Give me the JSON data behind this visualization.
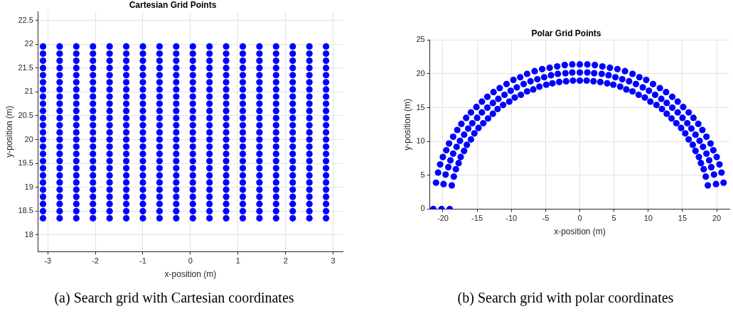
{
  "chart_data": [
    {
      "type": "scatter",
      "title": "Cartesian Grid Points",
      "xlabel": "x-position (m)",
      "ylabel": "y-position (m)",
      "annotations": [
        "(a) Search grid with Cartesian coordinates"
      ],
      "marker": "circle",
      "grid": true,
      "legend": false,
      "xlim": [
        -3.2,
        3.2
      ],
      "xticks": [
        -3,
        -2,
        -1,
        0,
        1,
        2,
        3
      ],
      "ylim": [
        17.65,
        22.68
      ],
      "yticks": [
        18,
        18.5,
        19,
        19.5,
        20,
        20.5,
        21,
        21.5,
        22,
        22.5
      ],
      "x": [
        -3.1,
        -2.75,
        -2.4,
        -2.05,
        -1.7,
        -1.35,
        -1.0,
        -0.65,
        -0.3,
        0.05,
        0.4,
        0.75,
        1.1,
        1.45,
        1.8,
        2.15,
        2.5,
        2.85
      ],
      "series": [
        {
          "color": "#0000ff",
          "values": [
            18.35,
            18.35,
            18.35,
            18.35,
            18.35,
            18.35,
            18.35,
            18.35,
            18.35,
            18.35,
            18.35,
            18.35,
            18.35,
            18.35,
            18.35,
            18.35,
            18.35,
            18.35
          ]
        },
        {
          "color": "#0000ff",
          "values": [
            18.5,
            18.5,
            18.5,
            18.5,
            18.5,
            18.5,
            18.5,
            18.5,
            18.5,
            18.5,
            18.5,
            18.5,
            18.5,
            18.5,
            18.5,
            18.5,
            18.5,
            18.5
          ]
        },
        {
          "color": "#0000ff",
          "values": [
            18.65,
            18.65,
            18.65,
            18.65,
            18.65,
            18.65,
            18.65,
            18.65,
            18.65,
            18.65,
            18.65,
            18.65,
            18.65,
            18.65,
            18.65,
            18.65,
            18.65,
            18.65
          ]
        },
        {
          "color": "#0000ff",
          "values": [
            18.8,
            18.8,
            18.8,
            18.8,
            18.8,
            18.8,
            18.8,
            18.8,
            18.8,
            18.8,
            18.8,
            18.8,
            18.8,
            18.8,
            18.8,
            18.8,
            18.8,
            18.8
          ]
        },
        {
          "color": "#0000ff",
          "values": [
            18.95,
            18.95,
            18.95,
            18.95,
            18.95,
            18.95,
            18.95,
            18.95,
            18.95,
            18.95,
            18.95,
            18.95,
            18.95,
            18.95,
            18.95,
            18.95,
            18.95,
            18.95
          ]
        },
        {
          "color": "#0000ff",
          "values": [
            19.1,
            19.1,
            19.1,
            19.1,
            19.1,
            19.1,
            19.1,
            19.1,
            19.1,
            19.1,
            19.1,
            19.1,
            19.1,
            19.1,
            19.1,
            19.1,
            19.1,
            19.1
          ]
        },
        {
          "color": "#0000ff",
          "values": [
            19.25,
            19.25,
            19.25,
            19.25,
            19.25,
            19.25,
            19.25,
            19.25,
            19.25,
            19.25,
            19.25,
            19.25,
            19.25,
            19.25,
            19.25,
            19.25,
            19.25,
            19.25
          ]
        },
        {
          "color": "#0000ff",
          "values": [
            19.4,
            19.4,
            19.4,
            19.4,
            19.4,
            19.4,
            19.4,
            19.4,
            19.4,
            19.4,
            19.4,
            19.4,
            19.4,
            19.4,
            19.4,
            19.4,
            19.4,
            19.4
          ]
        },
        {
          "color": "#0000ff",
          "values": [
            19.55,
            19.55,
            19.55,
            19.55,
            19.55,
            19.55,
            19.55,
            19.55,
            19.55,
            19.55,
            19.55,
            19.55,
            19.55,
            19.55,
            19.55,
            19.55,
            19.55,
            19.55
          ]
        },
        {
          "color": "#0000ff",
          "values": [
            19.7,
            19.7,
            19.7,
            19.7,
            19.7,
            19.7,
            19.7,
            19.7,
            19.7,
            19.7,
            19.7,
            19.7,
            19.7,
            19.7,
            19.7,
            19.7,
            19.7,
            19.7
          ]
        },
        {
          "color": "#0000ff",
          "values": [
            19.85,
            19.85,
            19.85,
            19.85,
            19.85,
            19.85,
            19.85,
            19.85,
            19.85,
            19.85,
            19.85,
            19.85,
            19.85,
            19.85,
            19.85,
            19.85,
            19.85,
            19.85
          ]
        },
        {
          "color": "#0000ff",
          "values": [
            20.0,
            20.0,
            20.0,
            20.0,
            20.0,
            20.0,
            20.0,
            20.0,
            20.0,
            20.0,
            20.0,
            20.0,
            20.0,
            20.0,
            20.0,
            20.0,
            20.0,
            20.0
          ]
        },
        {
          "color": "#0000ff",
          "values": [
            20.15,
            20.15,
            20.15,
            20.15,
            20.15,
            20.15,
            20.15,
            20.15,
            20.15,
            20.15,
            20.15,
            20.15,
            20.15,
            20.15,
            20.15,
            20.15,
            20.15,
            20.15
          ]
        },
        {
          "color": "#0000ff",
          "values": [
            20.3,
            20.3,
            20.3,
            20.3,
            20.3,
            20.3,
            20.3,
            20.3,
            20.3,
            20.3,
            20.3,
            20.3,
            20.3,
            20.3,
            20.3,
            20.3,
            20.3,
            20.3
          ]
        },
        {
          "color": "#0000ff",
          "values": [
            20.45,
            20.45,
            20.45,
            20.45,
            20.45,
            20.45,
            20.45,
            20.45,
            20.45,
            20.45,
            20.45,
            20.45,
            20.45,
            20.45,
            20.45,
            20.45,
            20.45,
            20.45
          ]
        },
        {
          "color": "#0000ff",
          "values": [
            20.6,
            20.6,
            20.6,
            20.6,
            20.6,
            20.6,
            20.6,
            20.6,
            20.6,
            20.6,
            20.6,
            20.6,
            20.6,
            20.6,
            20.6,
            20.6,
            20.6,
            20.6
          ]
        },
        {
          "color": "#0000ff",
          "values": [
            20.75,
            20.75,
            20.75,
            20.75,
            20.75,
            20.75,
            20.75,
            20.75,
            20.75,
            20.75,
            20.75,
            20.75,
            20.75,
            20.75,
            20.75,
            20.75,
            20.75,
            20.75
          ]
        },
        {
          "color": "#0000ff",
          "values": [
            20.9,
            20.9,
            20.9,
            20.9,
            20.9,
            20.9,
            20.9,
            20.9,
            20.9,
            20.9,
            20.9,
            20.9,
            20.9,
            20.9,
            20.9,
            20.9,
            20.9,
            20.9
          ]
        },
        {
          "color": "#0000ff",
          "values": [
            21.05,
            21.05,
            21.05,
            21.05,
            21.05,
            21.05,
            21.05,
            21.05,
            21.05,
            21.05,
            21.05,
            21.05,
            21.05,
            21.05,
            21.05,
            21.05,
            21.05,
            21.05
          ]
        },
        {
          "color": "#0000ff",
          "values": [
            21.2,
            21.2,
            21.2,
            21.2,
            21.2,
            21.2,
            21.2,
            21.2,
            21.2,
            21.2,
            21.2,
            21.2,
            21.2,
            21.2,
            21.2,
            21.2,
            21.2,
            21.2
          ]
        },
        {
          "color": "#0000ff",
          "values": [
            21.35,
            21.35,
            21.35,
            21.35,
            21.35,
            21.35,
            21.35,
            21.35,
            21.35,
            21.35,
            21.35,
            21.35,
            21.35,
            21.35,
            21.35,
            21.35,
            21.35,
            21.35
          ]
        },
        {
          "color": "#0000ff",
          "values": [
            21.5,
            21.5,
            21.5,
            21.5,
            21.5,
            21.5,
            21.5,
            21.5,
            21.5,
            21.5,
            21.5,
            21.5,
            21.5,
            21.5,
            21.5,
            21.5,
            21.5,
            21.5
          ]
        },
        {
          "color": "#0000ff",
          "values": [
            21.65,
            21.65,
            21.65,
            21.65,
            21.65,
            21.65,
            21.65,
            21.65,
            21.65,
            21.65,
            21.65,
            21.65,
            21.65,
            21.65,
            21.65,
            21.65,
            21.65,
            21.65
          ]
        },
        {
          "color": "#0000ff",
          "values": [
            21.8,
            21.8,
            21.8,
            21.8,
            21.8,
            21.8,
            21.8,
            21.8,
            21.8,
            21.8,
            21.8,
            21.8,
            21.8,
            21.8,
            21.8,
            21.8,
            21.8,
            21.8
          ]
        },
        {
          "color": "#0000ff",
          "values": [
            21.95,
            21.95,
            21.95,
            21.95,
            21.95,
            21.95,
            21.95,
            21.95,
            21.95,
            21.95,
            21.95,
            21.95,
            21.95,
            21.95,
            21.95,
            21.95,
            21.95,
            21.95
          ]
        }
      ]
    },
    {
      "type": "scatter",
      "title": "Polar Grid Points",
      "xlabel": "x-position (m)",
      "ylabel": "y-position (m)",
      "annotations": [
        "(b) Search grid with polar coordinates"
      ],
      "marker": "circle",
      "grid": true,
      "legend": false,
      "xlim": [
        -21.9,
        21.9
      ],
      "xticks": [
        -20,
        -15,
        -10,
        -5,
        0,
        5,
        10,
        15,
        20
      ],
      "ylim": [
        0,
        25
      ],
      "yticks": [
        0,
        5,
        10,
        15,
        20,
        25
      ],
      "series": [
        {
          "color": "#0000ff",
          "x": [
            18.7,
            18.4,
            18.1,
            17.7,
            17.4,
            16.9,
            16.5,
            15.9,
            15.4,
            14.8,
            14.1,
            13.4,
            12.7,
            12.0,
            11.2,
            10.3,
            9.5,
            8.6,
            7.7,
            6.8,
            5.9,
            4.9,
            4.0,
            3.0,
            2.0,
            1.0,
            0,
            -1.0,
            -2.0,
            -3.0,
            -4.0,
            -4.9,
            -5.9,
            -6.8,
            -7.7,
            -8.6,
            -9.5,
            -10.3,
            -11.2,
            -12.0,
            -12.7,
            -13.4,
            -14.1,
            -14.8,
            -15.4,
            -15.9,
            -16.5,
            -16.9,
            -17.4,
            -17.7,
            -18.1,
            -18.4,
            -18.7,
            -19.0
          ],
          "values": [
            3.5,
            4.8,
            5.9,
            6.8,
            7.7,
            8.6,
            9.5,
            10.3,
            11.2,
            12.0,
            12.7,
            13.4,
            14.1,
            14.8,
            15.4,
            15.9,
            16.5,
            16.9,
            17.4,
            17.7,
            18.1,
            18.4,
            18.6,
            18.8,
            18.9,
            19.0,
            19.0,
            19.0,
            18.9,
            18.8,
            18.6,
            18.4,
            18.1,
            17.7,
            17.4,
            16.9,
            16.5,
            15.9,
            15.4,
            14.8,
            14.1,
            13.4,
            12.7,
            12.0,
            11.2,
            10.3,
            9.5,
            8.6,
            7.7,
            6.8,
            5.9,
            4.8,
            3.5,
            0
          ]
        },
        {
          "color": "#0000ff",
          "x": [
            19.9,
            19.6,
            19.2,
            18.9,
            18.5,
            18.0,
            17.5,
            16.9,
            16.3,
            15.7,
            15.0,
            14.3,
            13.5,
            12.7,
            11.9,
            11.0,
            10.1,
            9.2,
            8.2,
            7.2,
            6.2,
            5.2,
            4.2,
            3.2,
            2.1,
            1.1,
            0,
            -1.1,
            -2.1,
            -3.2,
            -4.2,
            -5.2,
            -6.2,
            -7.2,
            -8.2,
            -9.2,
            -10.1,
            -11.0,
            -11.9,
            -12.7,
            -13.5,
            -14.3,
            -15.0,
            -15.7,
            -16.3,
            -16.9,
            -17.5,
            -18.0,
            -18.5,
            -18.9,
            -19.2,
            -19.6,
            -19.9,
            -20.2
          ],
          "values": [
            3.7,
            5.1,
            6.2,
            7.2,
            8.2,
            9.2,
            10.1,
            11.0,
            11.9,
            12.7,
            13.5,
            14.3,
            15.0,
            15.7,
            16.3,
            16.9,
            17.5,
            18.0,
            18.5,
            18.9,
            19.2,
            19.5,
            19.8,
            20.0,
            20.1,
            20.2,
            20.2,
            20.2,
            20.1,
            20.0,
            19.8,
            19.5,
            19.2,
            18.9,
            18.5,
            18.0,
            17.5,
            16.9,
            16.3,
            15.7,
            15.0,
            14.3,
            13.5,
            12.7,
            11.9,
            11.0,
            10.1,
            9.2,
            8.2,
            7.2,
            6.2,
            5.1,
            3.7,
            0
          ]
        },
        {
          "color": "#0000ff",
          "x": [
            21.0,
            20.7,
            20.4,
            20.0,
            19.5,
            19.1,
            18.5,
            17.9,
            17.3,
            16.6,
            15.9,
            15.1,
            14.3,
            13.5,
            12.6,
            11.7,
            10.7,
            9.7,
            8.7,
            7.7,
            6.6,
            5.5,
            4.4,
            3.3,
            2.2,
            1.1,
            0,
            -1.1,
            -2.2,
            -3.3,
            -4.4,
            -5.5,
            -6.6,
            -7.7,
            -8.7,
            -9.7,
            -10.7,
            -11.7,
            -12.6,
            -13.5,
            -14.3,
            -15.1,
            -15.9,
            -16.6,
            -17.3,
            -17.9,
            -18.5,
            -19.1,
            -19.5,
            -20.0,
            -20.4,
            -20.7,
            -21.0,
            -21.4
          ],
          "values": [
            3.9,
            5.4,
            6.6,
            7.7,
            8.7,
            9.7,
            10.7,
            11.7,
            12.6,
            13.5,
            14.3,
            15.1,
            15.9,
            16.6,
            17.3,
            17.9,
            18.5,
            19.1,
            19.5,
            20.0,
            20.4,
            20.7,
            20.9,
            21.1,
            21.3,
            21.4,
            21.4,
            21.4,
            21.3,
            21.1,
            20.9,
            20.7,
            20.4,
            20.0,
            19.5,
            19.1,
            18.5,
            17.9,
            17.3,
            16.6,
            15.9,
            15.1,
            14.3,
            13.5,
            12.6,
            11.7,
            10.7,
            9.7,
            8.7,
            7.7,
            6.6,
            5.4,
            3.9,
            0
          ]
        }
      ]
    }
  ]
}
